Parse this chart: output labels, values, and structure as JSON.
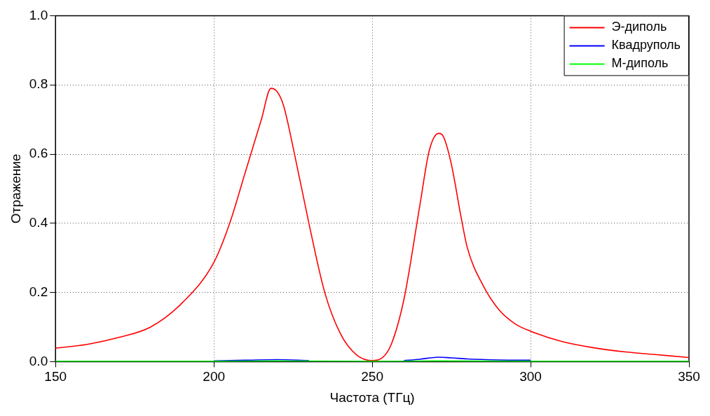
{
  "chart_data": {
    "type": "line",
    "xlabel": "Частота (ТГц)",
    "ylabel": "Отражение",
    "xlim": [
      150,
      350
    ],
    "xticks": [
      150,
      200,
      250,
      300,
      350
    ],
    "ylim": [
      0,
      1
    ],
    "yticks": [
      {
        "value": 0,
        "label": "0.0"
      },
      {
        "value": 0.2,
        "label": "0.2"
      },
      {
        "value": 0.4,
        "label": "0.4"
      },
      {
        "value": 0.6,
        "label": "0.6"
      },
      {
        "value": 0.8,
        "label": "0.8"
      },
      {
        "value": 1,
        "label": "1.0"
      }
    ],
    "grid": true,
    "legend": "top right",
    "marker": "none",
    "line_style": "solid",
    "series": [
      {
        "name": "Э-диполь",
        "color": "#ff0000",
        "x": [
          150,
          160,
          170,
          180,
          190,
          200,
          205,
          210,
          215,
          218,
          220,
          222,
          225,
          230,
          235,
          240,
          245,
          250,
          253,
          256,
          260,
          265,
          268,
          271,
          272.5,
          275,
          278,
          280,
          285,
          290,
          295,
          300,
          310,
          320,
          330,
          340,
          350
        ],
        "values": [
          0.039,
          0.05,
          0.07,
          0.1,
          0.17,
          0.287,
          0.4,
          0.55,
          0.7,
          0.79,
          0.78,
          0.74,
          0.62,
          0.4,
          0.2,
          0.08,
          0.02,
          0.003,
          0.01,
          0.05,
          0.18,
          0.45,
          0.61,
          0.66,
          0.65,
          0.57,
          0.42,
          0.33,
          0.22,
          0.15,
          0.11,
          0.088,
          0.058,
          0.04,
          0.028,
          0.02,
          0.012
        ]
      },
      {
        "name": "Квадруполь",
        "color": "#0000ff",
        "x": [
          200,
          210,
          220,
          230,
          245,
          260,
          265,
          271,
          275,
          280,
          290,
          300
        ],
        "values": [
          0.002,
          0.004,
          0.006,
          0.003,
          null,
          0.003,
          0.007,
          0.013,
          0.011,
          0.008,
          0.005,
          0.004
        ]
      },
      {
        "name": "М-диполь",
        "color": "#00ff00",
        "x": [
          150,
          200,
          220,
          250,
          270,
          300,
          350
        ],
        "values": [
          0.001,
          0.001,
          0.002,
          0.001,
          0.002,
          0.001,
          0.001
        ]
      }
    ]
  }
}
